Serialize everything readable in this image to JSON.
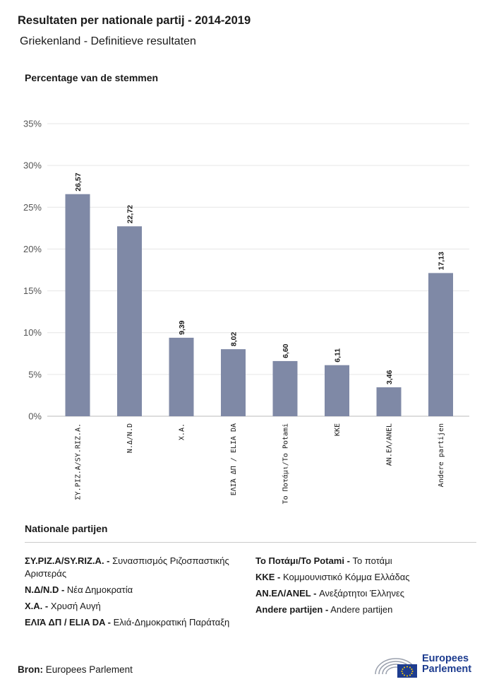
{
  "header": {
    "title": "Resultaten per nationale partij - 2014-2019",
    "subtitle": "Griekenland - Definitieve resultaten"
  },
  "chart_data": {
    "type": "bar",
    "ylabel": "Percentage van de stemmen",
    "ylim": [
      0,
      35
    ],
    "yticks": [
      "0%",
      "5%",
      "10%",
      "15%",
      "20%",
      "25%",
      "30%",
      "35%"
    ],
    "yticks_values": [
      0,
      5,
      10,
      15,
      20,
      25,
      30,
      35
    ],
    "grid": true,
    "bar_color": "#7f89a6",
    "categories": [
      "ΣΥ.ΡΙΖ.Α/SY.RIZ.A.",
      "Ν.Δ/N.D",
      "Χ.Α.",
      "ΕΛΙΆ ΔΠ / ELIA DA",
      "Το Ποτάμι/To Potami",
      "KKE",
      "ΑΝ.ΕΛ/ANEL",
      "Andere partijen"
    ],
    "values": [
      26.57,
      22.72,
      9.39,
      8.02,
      6.6,
      6.11,
      3.46,
      17.13
    ],
    "value_labels": [
      "26,57",
      "22,72",
      "9,39",
      "8,02",
      "6,60",
      "6,11",
      "3,46",
      "17,13"
    ]
  },
  "legend": {
    "title": "Nationale partijen",
    "left": [
      {
        "code": "ΣΥ.ΡΙΖ.Α/SY.RIZ.A. -",
        "name": "Συνασπισμός Ριζοσπαστικής Αριστεράς"
      },
      {
        "code": "Ν.Δ/N.D -",
        "name": "Νέα Δημοκρατία"
      },
      {
        "code": "Χ.Α. -",
        "name": "Χρυσή Αυγή"
      },
      {
        "code": "ΕΛΙΆ ΔΠ / ELIA DA -",
        "name": "Ελιά-Δημοκρατική Παράταξη"
      }
    ],
    "right": [
      {
        "code": "Το Ποτάμι/To Potami -",
        "name": "Το ποτάμι"
      },
      {
        "code": "KKE -",
        "name": "Κομμουνιστικό Κόμμα Ελλάδας"
      },
      {
        "code": "ΑΝ.ΕΛ/ANEL -",
        "name": "Ανεξάρτητοι Έλληνες"
      },
      {
        "code": "Andere partijen -",
        "name": "Andere partijen"
      }
    ]
  },
  "footer": {
    "source_label": "Bron:",
    "source_value": "Europees Parlement",
    "logo_line1": "Europees",
    "logo_line2": "Parlement"
  }
}
